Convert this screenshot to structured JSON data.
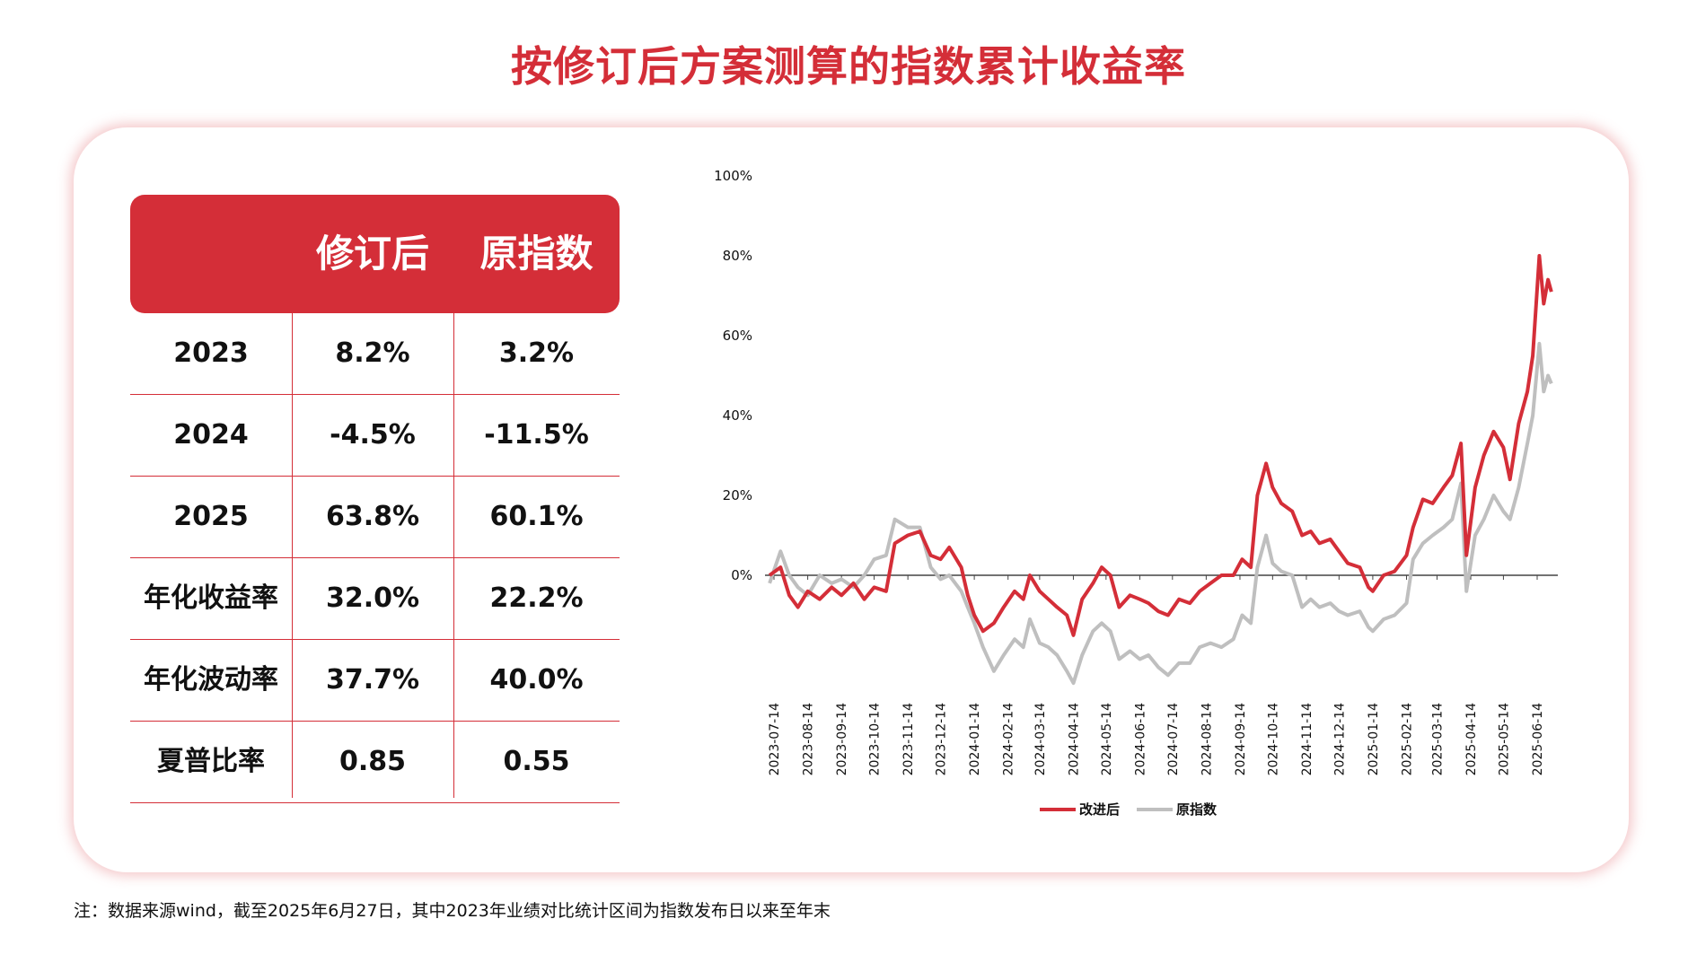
{
  "title": "按修订后方案测算的指数累计收益率",
  "table": {
    "headers": [
      "",
      "修订后",
      "原指数"
    ],
    "rows": [
      {
        "label": "2023",
        "revised": "8.2%",
        "original": "3.2%"
      },
      {
        "label": "2024",
        "revised": "-4.5%",
        "original": "-11.5%"
      },
      {
        "label": "2025",
        "revised": "63.8%",
        "original": "60.1%"
      },
      {
        "label": "年化收益率",
        "revised": "32.0%",
        "original": "22.2%"
      },
      {
        "label": "年化波动率",
        "revised": "37.7%",
        "original": "40.0%"
      },
      {
        "label": "夏普比率",
        "revised": "0.85",
        "original": "0.55"
      }
    ]
  },
  "chart_data": {
    "type": "line",
    "y_ticks": [
      "100%",
      "80%",
      "60%",
      "40%",
      "20%",
      "0%"
    ],
    "x_ticks": [
      "2023-07-14",
      "2023-08-14",
      "2023-09-14",
      "2023-10-14",
      "2023-11-14",
      "2023-12-14",
      "2024-01-14",
      "2024-02-14",
      "2024-03-14",
      "2024-04-14",
      "2024-05-14",
      "2024-06-14",
      "2024-07-14",
      "2024-08-14",
      "2024-09-14",
      "2024-10-14",
      "2024-11-14",
      "2024-12-14",
      "2025-01-14",
      "2025-02-14",
      "2025-03-14",
      "2025-04-14",
      "2025-05-14",
      "2025-06-14"
    ],
    "ylim": [
      -30,
      100
    ],
    "legend_position": "bottom-center",
    "series": [
      {
        "name": "改进后",
        "color": "#d42e38",
        "points": [
          [
            "2023-07-10",
            0
          ],
          [
            "2023-07-20",
            2
          ],
          [
            "2023-07-28",
            -5
          ],
          [
            "2023-08-05",
            -8
          ],
          [
            "2023-08-14",
            -4
          ],
          [
            "2023-08-25",
            -6
          ],
          [
            "2023-09-05",
            -3
          ],
          [
            "2023-09-14",
            -5
          ],
          [
            "2023-09-25",
            -2
          ],
          [
            "2023-10-05",
            -6
          ],
          [
            "2023-10-14",
            -3
          ],
          [
            "2023-10-25",
            -4
          ],
          [
            "2023-11-02",
            8
          ],
          [
            "2023-11-14",
            10
          ],
          [
            "2023-11-25",
            11
          ],
          [
            "2023-12-05",
            5
          ],
          [
            "2023-12-14",
            4
          ],
          [
            "2023-12-22",
            7
          ],
          [
            "2024-01-02",
            2
          ],
          [
            "2024-01-08",
            -5
          ],
          [
            "2024-01-14",
            -10
          ],
          [
            "2024-01-22",
            -14
          ],
          [
            "2024-02-01",
            -12
          ],
          [
            "2024-02-10",
            -8
          ],
          [
            "2024-02-20",
            -4
          ],
          [
            "2024-02-28",
            -6
          ],
          [
            "2024-03-05",
            0
          ],
          [
            "2024-03-14",
            -4
          ],
          [
            "2024-03-22",
            -6
          ],
          [
            "2024-03-30",
            -8
          ],
          [
            "2024-04-08",
            -10
          ],
          [
            "2024-04-14",
            -15
          ],
          [
            "2024-04-22",
            -6
          ],
          [
            "2024-05-02",
            -2
          ],
          [
            "2024-05-10",
            2
          ],
          [
            "2024-05-18",
            0
          ],
          [
            "2024-05-26",
            -8
          ],
          [
            "2024-06-05",
            -5
          ],
          [
            "2024-06-14",
            -6
          ],
          [
            "2024-06-22",
            -7
          ],
          [
            "2024-07-01",
            -9
          ],
          [
            "2024-07-10",
            -10
          ],
          [
            "2024-07-20",
            -6
          ],
          [
            "2024-07-30",
            -7
          ],
          [
            "2024-08-08",
            -4
          ],
          [
            "2024-08-18",
            -2
          ],
          [
            "2024-08-28",
            0
          ],
          [
            "2024-09-08",
            0
          ],
          [
            "2024-09-16",
            4
          ],
          [
            "2024-09-24",
            2
          ],
          [
            "2024-09-30",
            20
          ],
          [
            "2024-10-08",
            28
          ],
          [
            "2024-10-14",
            22
          ],
          [
            "2024-10-22",
            18
          ],
          [
            "2024-11-01",
            16
          ],
          [
            "2024-11-10",
            10
          ],
          [
            "2024-11-18",
            11
          ],
          [
            "2024-11-26",
            8
          ],
          [
            "2024-12-06",
            9
          ],
          [
            "2024-12-14",
            6
          ],
          [
            "2024-12-22",
            3
          ],
          [
            "2025-01-02",
            2
          ],
          [
            "2025-01-10",
            -3
          ],
          [
            "2025-01-14",
            -4
          ],
          [
            "2025-01-24",
            0
          ],
          [
            "2025-02-03",
            1
          ],
          [
            "2025-02-14",
            5
          ],
          [
            "2025-02-20",
            12
          ],
          [
            "2025-03-01",
            19
          ],
          [
            "2025-03-10",
            18
          ],
          [
            "2025-03-20",
            22
          ],
          [
            "2025-03-28",
            25
          ],
          [
            "2025-04-05",
            33
          ],
          [
            "2025-04-10",
            5
          ],
          [
            "2025-04-18",
            22
          ],
          [
            "2025-04-26",
            30
          ],
          [
            "2025-05-05",
            36
          ],
          [
            "2025-05-14",
            32
          ],
          [
            "2025-05-20",
            24
          ],
          [
            "2025-05-28",
            38
          ],
          [
            "2025-06-05",
            46
          ],
          [
            "2025-06-10",
            55
          ],
          [
            "2025-06-16",
            80
          ],
          [
            "2025-06-20",
            68
          ],
          [
            "2025-06-24",
            74
          ],
          [
            "2025-06-27",
            71
          ]
        ]
      },
      {
        "name": "原指数",
        "color": "#bfbfbf",
        "points": [
          [
            "2023-07-10",
            -2
          ],
          [
            "2023-07-20",
            6
          ],
          [
            "2023-07-28",
            0
          ],
          [
            "2023-08-05",
            -3
          ],
          [
            "2023-08-14",
            -5
          ],
          [
            "2023-08-25",
            0
          ],
          [
            "2023-09-05",
            -2
          ],
          [
            "2023-09-14",
            -1
          ],
          [
            "2023-09-25",
            -3
          ],
          [
            "2023-10-05",
            0
          ],
          [
            "2023-10-14",
            4
          ],
          [
            "2023-10-25",
            5
          ],
          [
            "2023-11-02",
            14
          ],
          [
            "2023-11-14",
            12
          ],
          [
            "2023-11-25",
            12
          ],
          [
            "2023-12-05",
            2
          ],
          [
            "2023-12-14",
            -1
          ],
          [
            "2023-12-22",
            0
          ],
          [
            "2024-01-02",
            -4
          ],
          [
            "2024-01-08",
            -8
          ],
          [
            "2024-01-14",
            -12
          ],
          [
            "2024-01-22",
            -18
          ],
          [
            "2024-02-01",
            -24
          ],
          [
            "2024-02-10",
            -20
          ],
          [
            "2024-02-20",
            -16
          ],
          [
            "2024-02-28",
            -18
          ],
          [
            "2024-03-05",
            -11
          ],
          [
            "2024-03-14",
            -17
          ],
          [
            "2024-03-22",
            -18
          ],
          [
            "2024-03-30",
            -20
          ],
          [
            "2024-04-08",
            -24
          ],
          [
            "2024-04-14",
            -27
          ],
          [
            "2024-04-22",
            -20
          ],
          [
            "2024-05-02",
            -14
          ],
          [
            "2024-05-10",
            -12
          ],
          [
            "2024-05-18",
            -14
          ],
          [
            "2024-05-26",
            -21
          ],
          [
            "2024-06-05",
            -19
          ],
          [
            "2024-06-14",
            -21
          ],
          [
            "2024-06-22",
            -20
          ],
          [
            "2024-07-01",
            -23
          ],
          [
            "2024-07-10",
            -25
          ],
          [
            "2024-07-20",
            -22
          ],
          [
            "2024-07-30",
            -22
          ],
          [
            "2024-08-08",
            -18
          ],
          [
            "2024-08-18",
            -17
          ],
          [
            "2024-08-28",
            -18
          ],
          [
            "2024-09-08",
            -16
          ],
          [
            "2024-09-16",
            -10
          ],
          [
            "2024-09-24",
            -12
          ],
          [
            "2024-09-30",
            2
          ],
          [
            "2024-10-08",
            10
          ],
          [
            "2024-10-14",
            3
          ],
          [
            "2024-10-22",
            1
          ],
          [
            "2024-11-01",
            0
          ],
          [
            "2024-11-10",
            -8
          ],
          [
            "2024-11-18",
            -6
          ],
          [
            "2024-11-26",
            -8
          ],
          [
            "2024-12-06",
            -7
          ],
          [
            "2024-12-14",
            -9
          ],
          [
            "2024-12-22",
            -10
          ],
          [
            "2025-01-02",
            -9
          ],
          [
            "2025-01-10",
            -13
          ],
          [
            "2025-01-14",
            -14
          ],
          [
            "2025-01-24",
            -11
          ],
          [
            "2025-02-03",
            -10
          ],
          [
            "2025-02-14",
            -7
          ],
          [
            "2025-02-20",
            4
          ],
          [
            "2025-03-01",
            8
          ],
          [
            "2025-03-10",
            10
          ],
          [
            "2025-03-20",
            12
          ],
          [
            "2025-03-28",
            14
          ],
          [
            "2025-04-05",
            23
          ],
          [
            "2025-04-10",
            -4
          ],
          [
            "2025-04-18",
            10
          ],
          [
            "2025-04-26",
            14
          ],
          [
            "2025-05-05",
            20
          ],
          [
            "2025-05-14",
            16
          ],
          [
            "2025-05-20",
            14
          ],
          [
            "2025-05-28",
            22
          ],
          [
            "2025-06-05",
            33
          ],
          [
            "2025-06-10",
            40
          ],
          [
            "2025-06-16",
            58
          ],
          [
            "2025-06-20",
            46
          ],
          [
            "2025-06-24",
            50
          ],
          [
            "2025-06-27",
            48
          ]
        ]
      }
    ]
  },
  "note": "注：数据来源wind，截至2025年6月27日，其中2023年业绩对比统计区间为指数发布日以来至年末"
}
